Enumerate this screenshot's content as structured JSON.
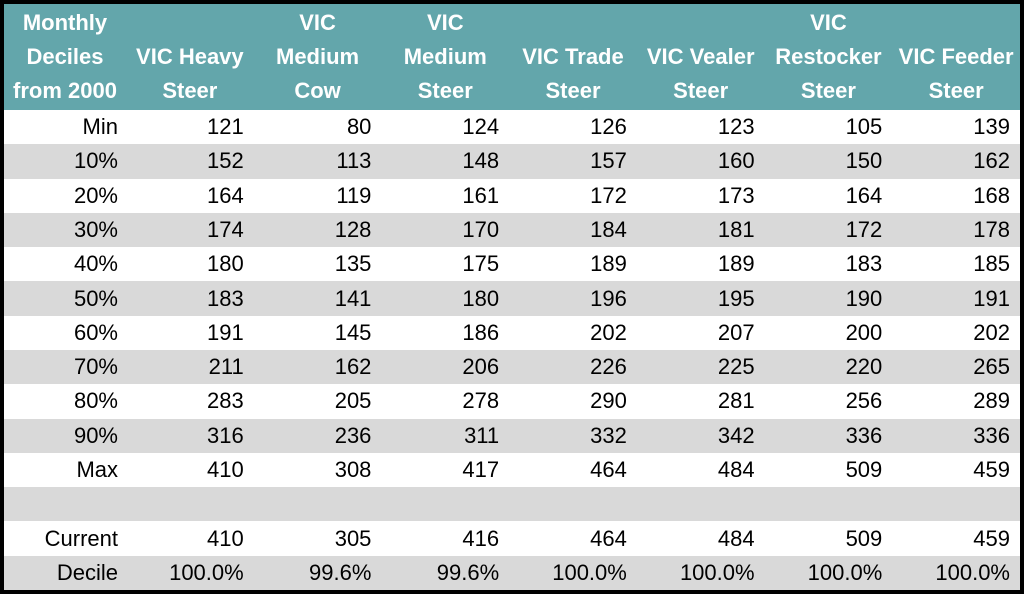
{
  "chart_data": {
    "type": "table",
    "corner_label": "Monthly Deciles from 2000",
    "columns": [
      "Monthly\nDeciles\nfrom 2000",
      "VIC Heavy\nSteer",
      "VIC\nMedium\nCow",
      "VIC\nMedium\nSteer",
      "VIC Trade\nSteer",
      "VIC Vealer\nSteer",
      "VIC\nRestocker\nSteer",
      "VIC Feeder\nSteer"
    ],
    "rows": [
      {
        "label": "Min",
        "values": [
          "121",
          "80",
          "124",
          "126",
          "123",
          "105",
          "139"
        ]
      },
      {
        "label": "10%",
        "values": [
          "152",
          "113",
          "148",
          "157",
          "160",
          "150",
          "162"
        ]
      },
      {
        "label": "20%",
        "values": [
          "164",
          "119",
          "161",
          "172",
          "173",
          "164",
          "168"
        ]
      },
      {
        "label": "30%",
        "values": [
          "174",
          "128",
          "170",
          "184",
          "181",
          "172",
          "178"
        ]
      },
      {
        "label": "40%",
        "values": [
          "180",
          "135",
          "175",
          "189",
          "189",
          "183",
          "185"
        ]
      },
      {
        "label": "50%",
        "values": [
          "183",
          "141",
          "180",
          "196",
          "195",
          "190",
          "191"
        ]
      },
      {
        "label": "60%",
        "values": [
          "191",
          "145",
          "186",
          "202",
          "207",
          "200",
          "202"
        ]
      },
      {
        "label": "70%",
        "values": [
          "211",
          "162",
          "206",
          "226",
          "225",
          "220",
          "265"
        ]
      },
      {
        "label": "80%",
        "values": [
          "283",
          "205",
          "278",
          "290",
          "281",
          "256",
          "289"
        ]
      },
      {
        "label": "90%",
        "values": [
          "316",
          "236",
          "311",
          "332",
          "342",
          "336",
          "336"
        ]
      },
      {
        "label": "Max",
        "values": [
          "410",
          "308",
          "417",
          "464",
          "484",
          "509",
          "459"
        ]
      },
      {
        "label": "",
        "values": [
          "",
          "",
          "",
          "",
          "",
          "",
          ""
        ]
      },
      {
        "label": "Current",
        "values": [
          "410",
          "305",
          "416",
          "464",
          "484",
          "509",
          "459"
        ]
      },
      {
        "label": "Decile",
        "values": [
          "100.0%",
          "99.6%",
          "99.6%",
          "100.0%",
          "100.0%",
          "100.0%",
          "100.0%"
        ]
      }
    ],
    "styles": {
      "header_bg": "#63A6AB",
      "header_text": "#FFFFFF",
      "stripe": "#D9D9D9",
      "row_bg": "#FFFFFF",
      "text": "#000000",
      "frame": "#000000"
    }
  }
}
